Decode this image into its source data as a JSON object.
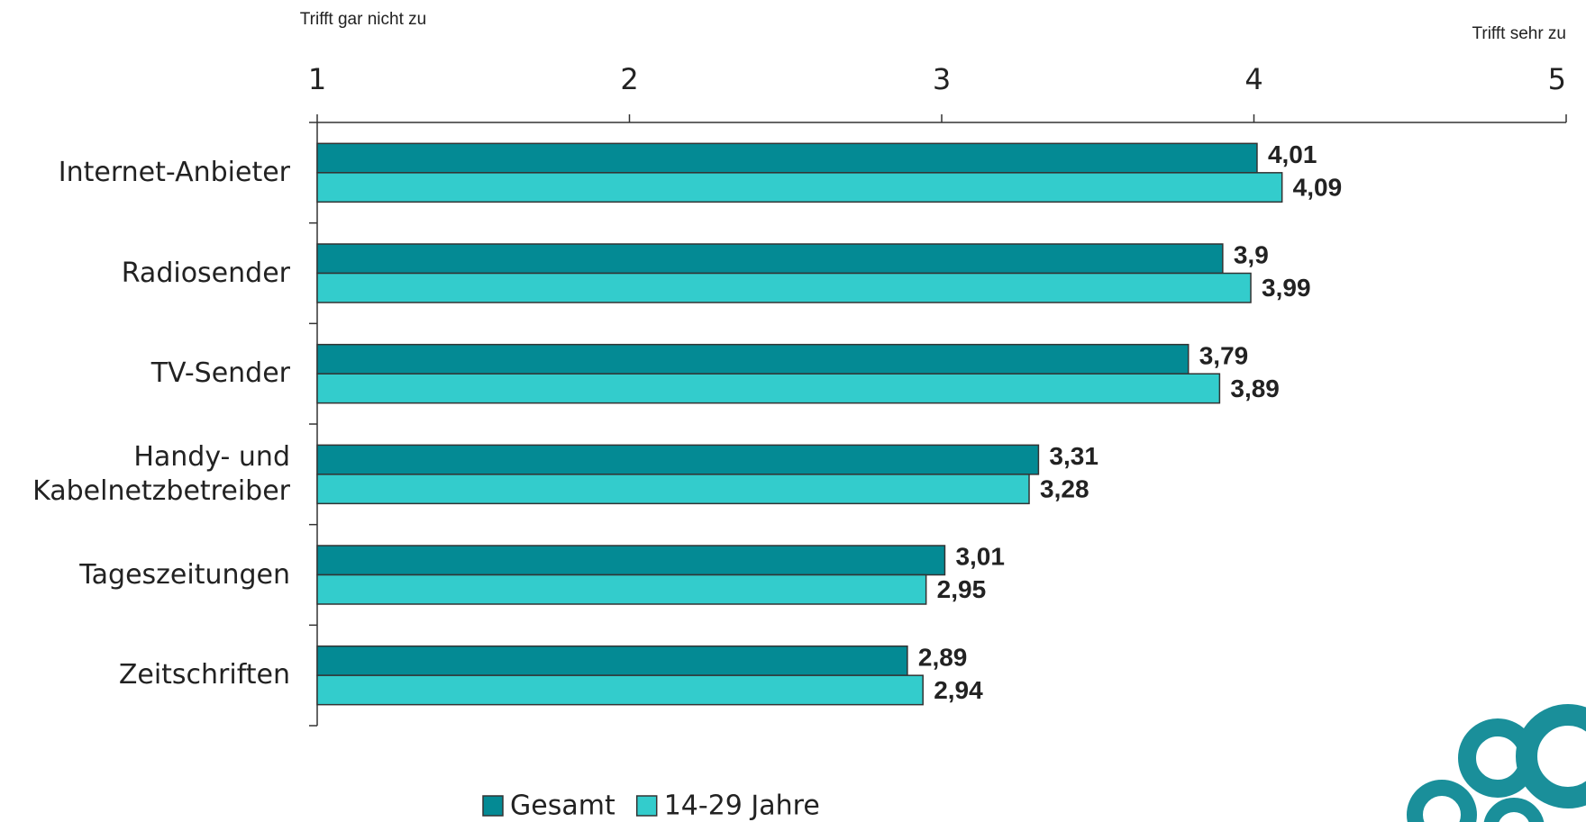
{
  "chart_data": {
    "type": "hbar",
    "annotations": [
      "Trifft gar nicht zu",
      "Trifft sehr zu"
    ],
    "categories": [
      "Internet-Anbieter",
      "Radiosender",
      "TV-Sender",
      "Handy- und Kabelnetzbetreiber",
      "Tageszeitungen",
      "Zeitschriften"
    ],
    "series": [
      {
        "name": "Gesamt",
        "color": "#048a94",
        "values": [
          4.01,
          3.9,
          3.79,
          3.31,
          3.01,
          2.89
        ],
        "value_labels": [
          "4,01",
          "3,9",
          "3,79",
          "3,31",
          "3,01",
          "2,89"
        ]
      },
      {
        "name": "14-29 Jahre",
        "color": "#33cccc",
        "values": [
          4.09,
          3.99,
          3.89,
          3.28,
          2.95,
          2.94
        ],
        "value_labels": [
          "4,09",
          "3,99",
          "3,89",
          "3,28",
          "2,95",
          "2,94"
        ]
      }
    ],
    "xlim": [
      1,
      5
    ],
    "xticks": [
      1,
      2,
      3,
      4,
      5
    ],
    "legend": "bottom"
  }
}
